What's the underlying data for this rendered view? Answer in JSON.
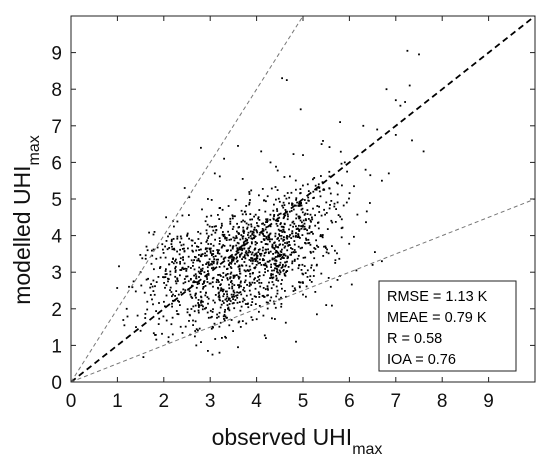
{
  "chart_data": {
    "type": "scatter",
    "xlabel": {
      "main": "observed UHI",
      "sub": "max"
    },
    "ylabel": {
      "main": "modelled UHI",
      "sub": "max"
    },
    "xlim": [
      0,
      10
    ],
    "ylim": [
      0,
      10
    ],
    "x_ticks": [
      "0",
      "1",
      "2",
      "3",
      "4",
      "5",
      "6",
      "7",
      "8",
      "9"
    ],
    "y_ticks": [
      "0",
      "1",
      "2",
      "3",
      "4",
      "5",
      "6",
      "7",
      "8",
      "9"
    ],
    "grid": false,
    "reference_lines": [
      {
        "slope": 1,
        "style": "dashed-bold",
        "color": "#000000"
      },
      {
        "slope": 2,
        "style": "dashed-thin",
        "color": "#777777"
      },
      {
        "slope": 0.5,
        "style": "dashed-thin",
        "color": "#777777"
      }
    ],
    "stats": [
      "RMSE = 1.13 K",
      "MEAE = 0.79 K",
      "R = 0.58",
      "IOA = 0.76"
    ],
    "stats_position": "bottom-right",
    "point_color": "#000000",
    "points": [
      [
        7.25,
        9.05
      ],
      [
        7.5,
        8.95
      ],
      [
        4.55,
        8.3
      ],
      [
        4.65,
        8.25
      ],
      [
        7.3,
        8.1
      ],
      [
        6.8,
        8.0
      ],
      [
        7.0,
        7.7
      ],
      [
        7.2,
        7.65
      ],
      [
        7.1,
        7.55
      ],
      [
        4.95,
        7.45
      ],
      [
        5.8,
        7.1
      ],
      [
        6.3,
        7.0
      ],
      [
        6.6,
        6.9
      ],
      [
        7.0,
        6.75
      ],
      [
        7.35,
        6.6
      ],
      [
        7.6,
        6.3
      ],
      [
        6.85,
        5.7
      ],
      [
        6.7,
        5.5
      ],
      [
        6.45,
        5.65
      ],
      [
        2.8,
        6.4
      ],
      [
        3.6,
        6.45
      ],
      [
        4.1,
        6.3
      ],
      [
        3.3,
        6.1
      ],
      [
        4.3,
        6.0
      ],
      [
        5.0,
        6.2
      ],
      [
        5.4,
        6.5
      ],
      [
        5.9,
        6.0
      ],
      [
        3.1,
        5.7
      ],
      [
        2.45,
        5.3
      ],
      [
        2.55,
        5.05
      ],
      [
        2.4,
        4.55
      ],
      [
        2.2,
        4.4
      ],
      [
        2.05,
        4.5
      ],
      [
        1.8,
        4.1
      ],
      [
        1.65,
        3.6
      ],
      [
        1.75,
        3.45
      ],
      [
        1.5,
        3.0
      ],
      [
        1.35,
        2.75
      ],
      [
        1.25,
        2.6
      ],
      [
        1.2,
        2.0
      ],
      [
        1.15,
        1.55
      ],
      [
        1.4,
        1.5
      ],
      [
        1.5,
        1.4
      ],
      [
        1.6,
        1.75
      ],
      [
        2.1,
        1.1
      ],
      [
        2.7,
        1.0
      ],
      [
        2.95,
        0.85
      ],
      [
        3.05,
        0.75
      ],
      [
        3.2,
        0.8
      ],
      [
        3.6,
        0.95
      ],
      [
        4.2,
        1.2
      ],
      [
        4.85,
        1.1
      ],
      [
        5.3,
        1.85
      ],
      [
        5.8,
        2.9
      ],
      [
        6.15,
        3.05
      ],
      [
        6.5,
        3.2
      ],
      [
        6.55,
        3.55
      ],
      [
        6.7,
        3.3
      ],
      [
        5.6,
        2.6
      ],
      [
        5.5,
        2.1
      ],
      [
        4.05,
        5.1
      ],
      [
        3.85,
        4.9
      ],
      [
        4.6,
        5.6
      ],
      [
        5.35,
        5.3
      ],
      [
        5.6,
        5.15
      ],
      [
        6.1,
        5.35
      ],
      [
        6.35,
        5.8
      ],
      [
        5.95,
        5.75
      ],
      [
        3.7,
        5.55
      ],
      [
        2.95,
        5.0
      ]
    ],
    "cloud_clusters": [
      {
        "cx": 3.6,
        "cy": 3.3,
        "sx": 0.9,
        "sy": 0.75,
        "count": 620
      },
      {
        "cx": 4.3,
        "cy": 3.6,
        "sx": 0.65,
        "sy": 0.8,
        "count": 380
      },
      {
        "cx": 2.4,
        "cy": 3.1,
        "sx": 0.45,
        "sy": 0.55,
        "count": 160
      },
      {
        "cx": 5.0,
        "cy": 4.4,
        "sx": 0.5,
        "sy": 0.7,
        "count": 150
      },
      {
        "cx": 3.3,
        "cy": 2.2,
        "sx": 0.55,
        "sy": 0.45,
        "count": 130
      }
    ]
  }
}
